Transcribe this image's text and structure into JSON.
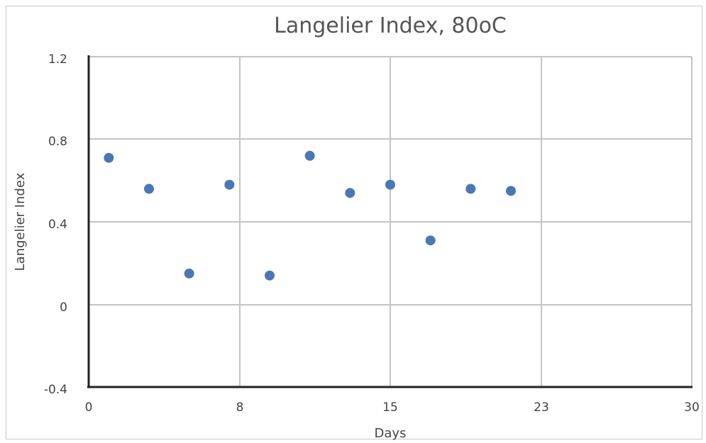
{
  "chart_data": {
    "type": "scatter",
    "title": "Langelier Index, 80oC",
    "xlabel": "Days",
    "ylabel": "Langelier Index",
    "xlim": [
      0,
      30
    ],
    "ylim": [
      -0.4,
      1.2
    ],
    "x_ticks": [
      "0",
      "8",
      "15",
      "23",
      "30"
    ],
    "y_ticks": [
      "1.2",
      "0.8",
      "0.4",
      "0",
      "-0.4"
    ],
    "grid": true,
    "series": [
      {
        "color": "#4a78b5",
        "points": [
          {
            "x": 1,
            "y": 0.71
          },
          {
            "x": 3,
            "y": 0.56
          },
          {
            "x": 5,
            "y": 0.15
          },
          {
            "x": 7,
            "y": 0.58
          },
          {
            "x": 9,
            "y": 0.14
          },
          {
            "x": 11,
            "y": 0.72
          },
          {
            "x": 13,
            "y": 0.54
          },
          {
            "x": 15,
            "y": 0.58
          },
          {
            "x": 17,
            "y": 0.31
          },
          {
            "x": 19,
            "y": 0.56
          },
          {
            "x": 21,
            "y": 0.55
          }
        ]
      }
    ]
  }
}
